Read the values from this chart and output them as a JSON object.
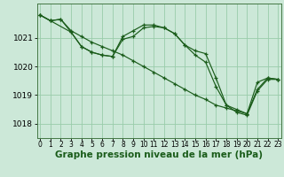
{
  "background_color": "#cce8d8",
  "grid_color": "#99ccaa",
  "line_color": "#1a5c1a",
  "xlabel": "Graphe pression niveau de la mer (hPa)",
  "xlabel_fontsize": 7.5,
  "ylabel_fontsize": 6.5,
  "tick_fontsize": 5.5,
  "ylim": [
    1017.5,
    1022.2
  ],
  "xlim": [
    -0.3,
    23.3
  ],
  "yticks": [
    1018,
    1019,
    1020,
    1021
  ],
  "xticks": [
    0,
    1,
    2,
    3,
    4,
    5,
    6,
    7,
    8,
    9,
    10,
    11,
    12,
    13,
    14,
    15,
    16,
    17,
    18,
    19,
    20,
    21,
    22,
    23
  ],
  "line1_x": [
    0,
    1,
    2,
    3,
    4,
    5,
    6,
    7,
    8,
    9,
    10,
    11,
    12,
    13,
    14,
    15,
    16,
    17,
    18,
    19,
    20,
    21,
    22,
    23
  ],
  "line1_y": [
    1021.8,
    1021.6,
    1021.65,
    1021.25,
    1021.05,
    1020.85,
    1020.7,
    1020.55,
    1020.4,
    1020.2,
    1020.0,
    1019.8,
    1019.6,
    1019.4,
    1019.2,
    1019.0,
    1018.85,
    1018.65,
    1018.55,
    1018.45,
    1018.35,
    1019.45,
    1019.6,
    1019.55
  ],
  "line2_x": [
    0,
    1,
    2,
    3,
    4,
    5,
    6,
    7,
    8,
    9,
    10,
    11,
    12,
    13,
    14,
    15,
    16,
    17,
    18,
    19,
    20,
    21,
    22,
    23
  ],
  "line2_y": [
    1021.8,
    1021.6,
    1021.65,
    1021.2,
    1020.7,
    1020.5,
    1020.4,
    1020.35,
    1021.05,
    1021.25,
    1021.45,
    1021.45,
    1021.35,
    1021.15,
    1020.75,
    1020.4,
    1020.15,
    1019.3,
    1018.65,
    1018.4,
    1018.3,
    1019.15,
    1019.55,
    1019.55
  ],
  "line3_x": [
    0,
    1,
    3,
    4,
    5,
    6,
    7,
    8,
    9,
    10,
    11,
    12,
    13,
    14,
    15,
    16,
    17,
    18,
    19,
    20,
    21,
    22,
    23
  ],
  "line3_y": [
    1021.8,
    1021.6,
    1021.2,
    1020.7,
    1020.5,
    1020.4,
    1020.35,
    1020.95,
    1021.05,
    1021.35,
    1021.4,
    1021.35,
    1021.15,
    1020.75,
    1020.55,
    1020.45,
    1019.6,
    1018.65,
    1018.5,
    1018.35,
    1019.2,
    1019.6,
    1019.55
  ]
}
